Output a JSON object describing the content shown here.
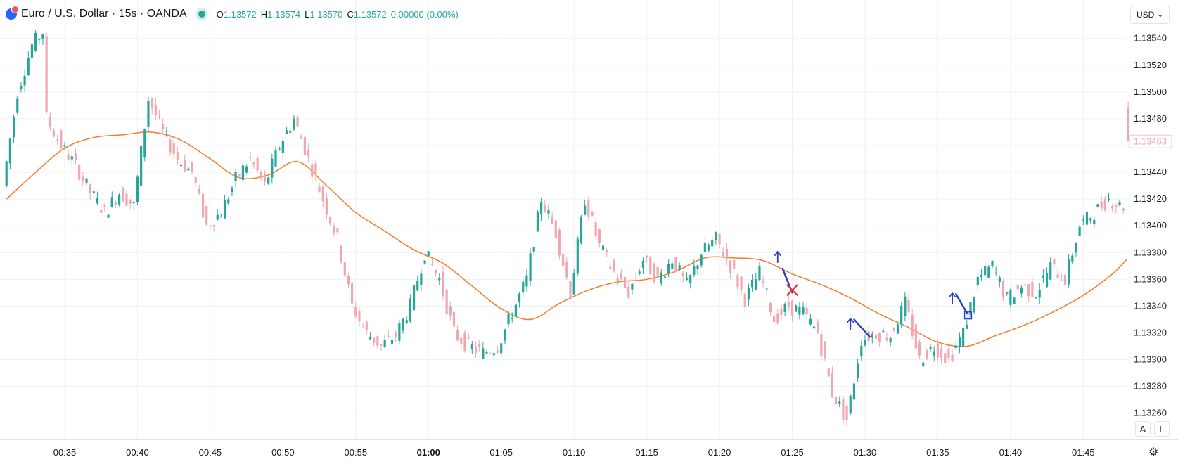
{
  "legend": {
    "symbol": "Euro / U.S. Dollar · 15s · OANDA",
    "o_label": "O",
    "o_value": "1.13572",
    "h_label": "H",
    "h_value": "1.13574",
    "l_label": "L",
    "l_value": "1.13570",
    "c_label": "C",
    "c_value": "1.13572",
    "change": "0.00000 (0.00%)"
  },
  "currency_select": {
    "value": "USD",
    "icon": "chevron-down-icon"
  },
  "scale_buttons": {
    "auto": "A",
    "log": "L"
  },
  "settings_icon": "gear-icon",
  "colors": {
    "up": "#26a69a",
    "down": "#f0a7ae",
    "ma": "#f57c26",
    "drawing_blue": "#2f3ec4",
    "drawing_red": "#e8323c",
    "grid": "#eef0f4"
  },
  "chart_data": {
    "type": "candlestick",
    "symbol": "EURUSD",
    "interval": "15s",
    "price_axis": {
      "ticks": [
        "1.13540",
        "1.13520",
        "1.13500",
        "1.13480",
        "1.13440",
        "1.13420",
        "1.13400",
        "1.13380",
        "1.13360",
        "1.13340",
        "1.13320",
        "1.13300",
        "1.13280",
        "1.13260"
      ],
      "ylim": [
        1.13243,
        1.13553
      ],
      "last_price_label": "1.13463"
    },
    "time_axis": {
      "ticks": [
        "00:35",
        "00:40",
        "00:45",
        "00:50",
        "00:55",
        "01:00",
        "01:05",
        "01:10",
        "01:15",
        "01:20",
        "01:25",
        "01:30",
        "01:35",
        "01:40",
        "01:45"
      ],
      "bold": [
        "01:00"
      ]
    },
    "grid": true,
    "series": [
      {
        "type": "candles",
        "knots": [
          [
            "00:31:00",
            1.1343
          ],
          [
            "00:32:00",
            1.135
          ],
          [
            "00:33:00",
            1.13535
          ],
          [
            "00:33:45",
            1.13545
          ],
          [
            "00:34:00",
            1.1348
          ],
          [
            "00:35:00",
            1.1346
          ],
          [
            "00:36:00",
            1.13445
          ],
          [
            "00:37:00",
            1.13425
          ],
          [
            "00:38:00",
            1.1341
          ],
          [
            "00:39:00",
            1.13425
          ],
          [
            "00:40:00",
            1.13415
          ],
          [
            "00:41:00",
            1.13495
          ],
          [
            "00:42:00",
            1.1347
          ],
          [
            "00:43:00",
            1.1345
          ],
          [
            "00:44:00",
            1.1344
          ],
          [
            "00:45:00",
            1.134
          ],
          [
            "00:46:00",
            1.1341
          ],
          [
            "00:47:00",
            1.13435
          ],
          [
            "00:48:00",
            1.1345
          ],
          [
            "00:49:00",
            1.1343
          ],
          [
            "00:50:00",
            1.1346
          ],
          [
            "00:51:00",
            1.1348
          ],
          [
            "00:52:00",
            1.1345
          ],
          [
            "00:53:00",
            1.1342
          ],
          [
            "00:54:00",
            1.1339
          ],
          [
            "00:55:00",
            1.1334
          ],
          [
            "00:56:00",
            1.1332
          ],
          [
            "00:57:00",
            1.1331
          ],
          [
            "00:58:00",
            1.13318
          ],
          [
            "00:59:00",
            1.1334
          ],
          [
            "01:00:00",
            1.1338
          ],
          [
            "01:01:00",
            1.1336
          ],
          [
            "01:02:00",
            1.1332
          ],
          [
            "01:03:00",
            1.1331
          ],
          [
            "01:04:00",
            1.13305
          ],
          [
            "01:05:00",
            1.1331
          ],
          [
            "01:06:00",
            1.13335
          ],
          [
            "01:07:00",
            1.1336
          ],
          [
            "01:08:00",
            1.1342
          ],
          [
            "01:09:00",
            1.13395
          ],
          [
            "01:10:00",
            1.1335
          ],
          [
            "01:11:00",
            1.1342
          ],
          [
            "01:12:00",
            1.13385
          ],
          [
            "01:13:00",
            1.13365
          ],
          [
            "01:14:00",
            1.1335
          ],
          [
            "01:15:00",
            1.13375
          ],
          [
            "01:16:00",
            1.1336
          ],
          [
            "01:17:00",
            1.13375
          ],
          [
            "01:18:00",
            1.13355
          ],
          [
            "01:19:00",
            1.1338
          ],
          [
            "01:20:00",
            1.1339
          ],
          [
            "01:21:00",
            1.1337
          ],
          [
            "01:22:00",
            1.13345
          ],
          [
            "01:23:00",
            1.13365
          ],
          [
            "01:24:00",
            1.1333
          ],
          [
            "01:25:00",
            1.1334
          ],
          [
            "01:26:00",
            1.13335
          ],
          [
            "01:27:00",
            1.1332
          ],
          [
            "01:28:00",
            1.13275
          ],
          [
            "01:29:00",
            1.13255
          ],
          [
            "01:30:00",
            1.13315
          ],
          [
            "01:31:00",
            1.1332
          ],
          [
            "01:32:00",
            1.13318
          ],
          [
            "01:33:00",
            1.13342
          ],
          [
            "01:34:00",
            1.133
          ],
          [
            "01:35:00",
            1.1331
          ],
          [
            "01:36:00",
            1.133
          ],
          [
            "01:37:00",
            1.1332
          ],
          [
            "01:38:00",
            1.1336
          ],
          [
            "01:39:00",
            1.1337
          ],
          [
            "01:40:00",
            1.13345
          ],
          [
            "01:41:00",
            1.13355
          ],
          [
            "01:42:00",
            1.1335
          ],
          [
            "01:43:00",
            1.1337
          ],
          [
            "01:44:00",
            1.1336
          ],
          [
            "01:45:00",
            1.134
          ],
          [
            "01:46:00",
            1.1341
          ],
          [
            "01:47:00",
            1.1342
          ],
          [
            "01:47:45",
            1.13415
          ]
        ]
      },
      {
        "type": "moving_average",
        "points": [
          [
            "00:31:00",
            1.1342
          ],
          [
            "00:33:00",
            1.1344
          ],
          [
            "00:35:00",
            1.13458
          ],
          [
            "00:37:00",
            1.13466
          ],
          [
            "00:39:00",
            1.13468
          ],
          [
            "00:41:00",
            1.1347
          ],
          [
            "00:43:00",
            1.13464
          ],
          [
            "00:45:00",
            1.1345
          ],
          [
            "00:47:00",
            1.13436
          ],
          [
            "00:49:00",
            1.13438
          ],
          [
            "00:51:00",
            1.13448
          ],
          [
            "00:53:00",
            1.1343
          ],
          [
            "00:55:00",
            1.1341
          ],
          [
            "00:57:00",
            1.13396
          ],
          [
            "00:59:00",
            1.13382
          ],
          [
            "01:01:00",
            1.13372
          ],
          [
            "01:03:00",
            1.13355
          ],
          [
            "01:05:00",
            1.13338
          ],
          [
            "01:07:00",
            1.1333
          ],
          [
            "01:09:00",
            1.13342
          ],
          [
            "01:11:00",
            1.13352
          ],
          [
            "01:13:00",
            1.13358
          ],
          [
            "01:15:00",
            1.1336
          ],
          [
            "01:17:00",
            1.13366
          ],
          [
            "01:19:00",
            1.13376
          ],
          [
            "01:21:00",
            1.13376
          ],
          [
            "01:23:00",
            1.13374
          ],
          [
            "01:25:00",
            1.13364
          ],
          [
            "01:27:00",
            1.13356
          ],
          [
            "01:29:00",
            1.13346
          ],
          [
            "01:31:00",
            1.13334
          ],
          [
            "01:33:00",
            1.13324
          ],
          [
            "01:35:00",
            1.13313
          ],
          [
            "01:37:00",
            1.1331
          ],
          [
            "01:39:00",
            1.13318
          ],
          [
            "01:41:00",
            1.13326
          ],
          [
            "01:43:00",
            1.13336
          ],
          [
            "01:45:00",
            1.13348
          ],
          [
            "01:47:00",
            1.13364
          ],
          [
            "01:48:00",
            1.13375
          ]
        ]
      },
      {
        "type": "pending_candle",
        "time": "01:48:05",
        "open": 1.13463,
        "high": 1.13493,
        "low": 1.13463,
        "close": 1.1348
      }
    ],
    "drawings": [
      {
        "kind": "arrow_up",
        "time": "01:24:00",
        "price": 1.13378
      },
      {
        "kind": "line",
        "from": [
          "01:24:20",
          1.13368
        ],
        "to": [
          "01:25:00",
          1.1335
        ]
      },
      {
        "kind": "cross",
        "time": "01:25:00",
        "price": 1.13352
      },
      {
        "kind": "arrow_up",
        "time": "01:29:00",
        "price": 1.13328
      },
      {
        "kind": "line",
        "from": [
          "01:29:15",
          1.1333
        ],
        "to": [
          "01:30:20",
          1.13317
        ]
      },
      {
        "kind": "arrow_up",
        "time": "01:36:00",
        "price": 1.13347
      },
      {
        "kind": "line",
        "from": [
          "01:36:15",
          1.13349
        ],
        "to": [
          "01:37:00",
          1.13335
        ]
      },
      {
        "kind": "square",
        "time": "01:37:05",
        "price": 1.13333
      }
    ]
  }
}
